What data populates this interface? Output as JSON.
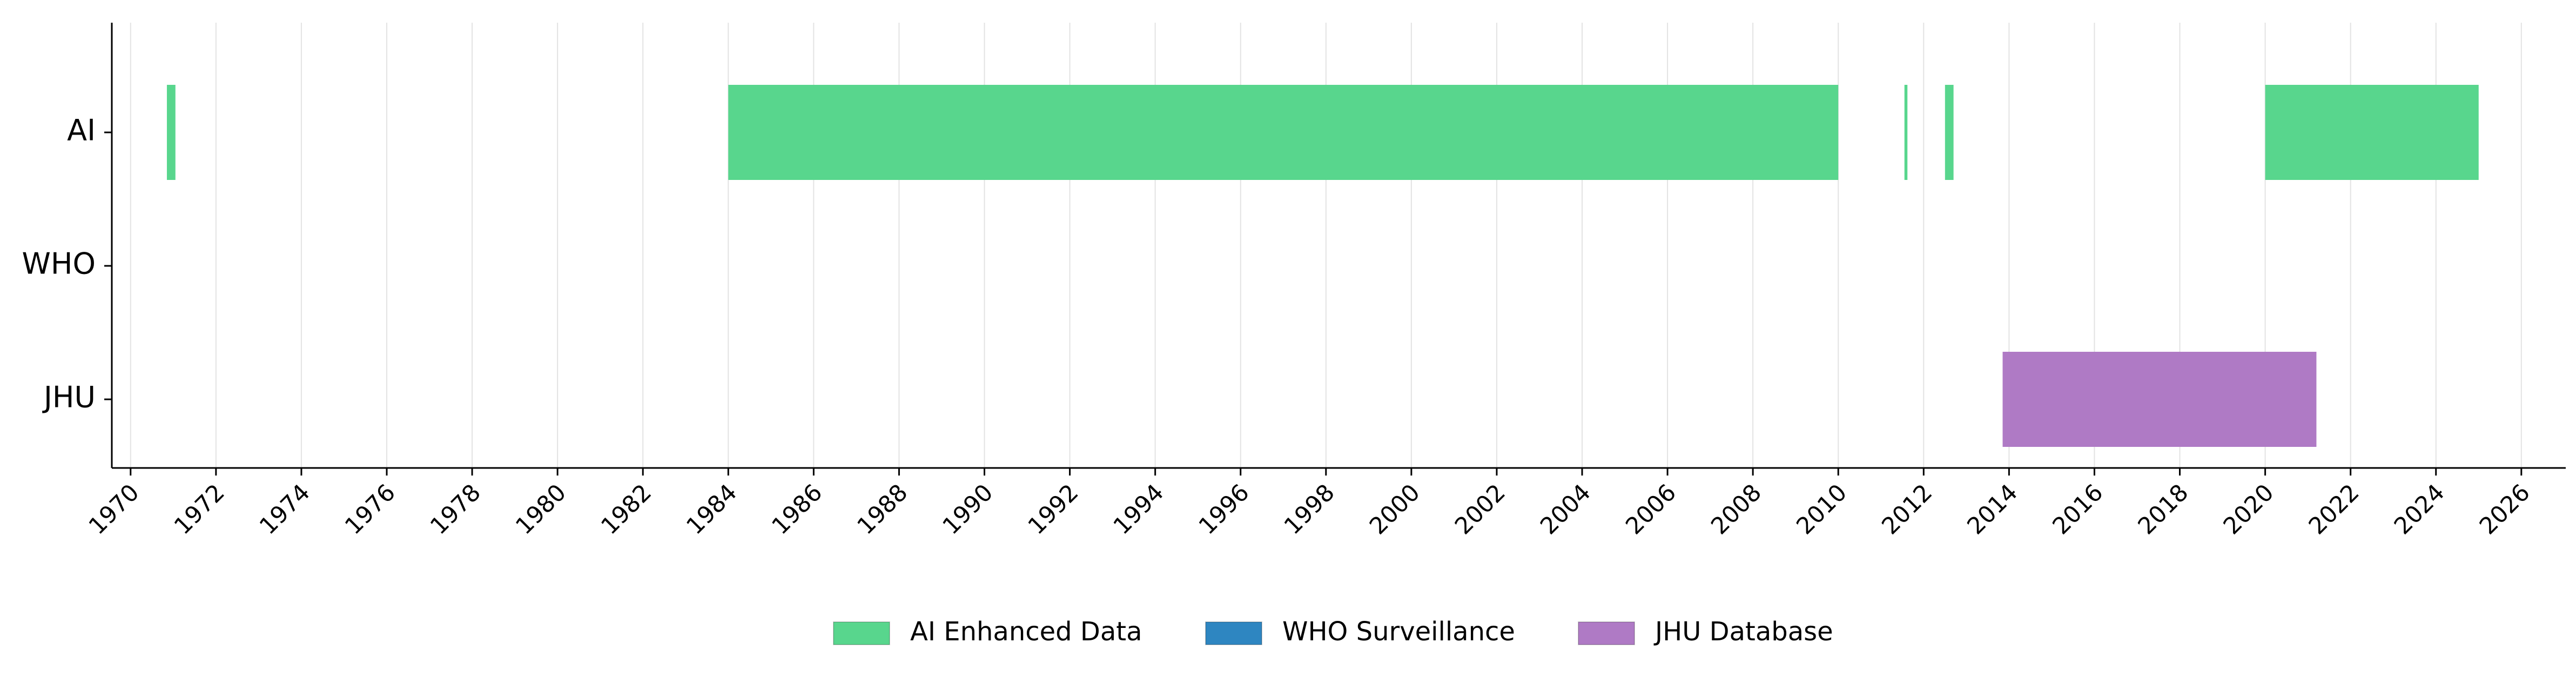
{
  "chart_data": {
    "type": "timeline",
    "title": "",
    "xlabel": "",
    "ylabel": "",
    "x_range": [
      1969.56,
      2027.04
    ],
    "x_ticks": [
      1970,
      1972,
      1974,
      1976,
      1978,
      1980,
      1982,
      1984,
      1986,
      1988,
      1990,
      1992,
      1994,
      1996,
      1998,
      2000,
      2002,
      2004,
      2006,
      2008,
      2010,
      2012,
      2014,
      2016,
      2018,
      2020,
      2022,
      2024,
      2026
    ],
    "x_tick_labels": [
      "1970",
      "1972",
      "1974",
      "1976",
      "1978",
      "1980",
      "1982",
      "1984",
      "1986",
      "1988",
      "1990",
      "1992",
      "1994",
      "1996",
      "1998",
      "2000",
      "2002",
      "2004",
      "2006",
      "2008",
      "2010",
      "2012",
      "2014",
      "2016",
      "2018",
      "2020",
      "2022",
      "2024",
      "2026"
    ],
    "grid": "vertical",
    "legend_position": "bottom-center",
    "categories": [
      "AI",
      "WHO",
      "JHU"
    ],
    "series": [
      {
        "name": "AI Enhanced Data",
        "color": "#58d68d",
        "row": "AI",
        "intervals": [
          [
            1970.85,
            1971.05
          ],
          [
            1984.0,
            2010.0
          ],
          [
            2011.55,
            2011.62
          ],
          [
            2012.5,
            2012.7
          ],
          [
            2020.0,
            2025.0
          ]
        ]
      },
      {
        "name": "WHO Surveillance",
        "color": "#2e86c1",
        "row": "WHO",
        "intervals": []
      },
      {
        "name": "JHU Database",
        "color": "#af7ac5",
        "row": "JHU",
        "intervals": [
          [
            2013.85,
            2021.2
          ]
        ]
      }
    ]
  }
}
